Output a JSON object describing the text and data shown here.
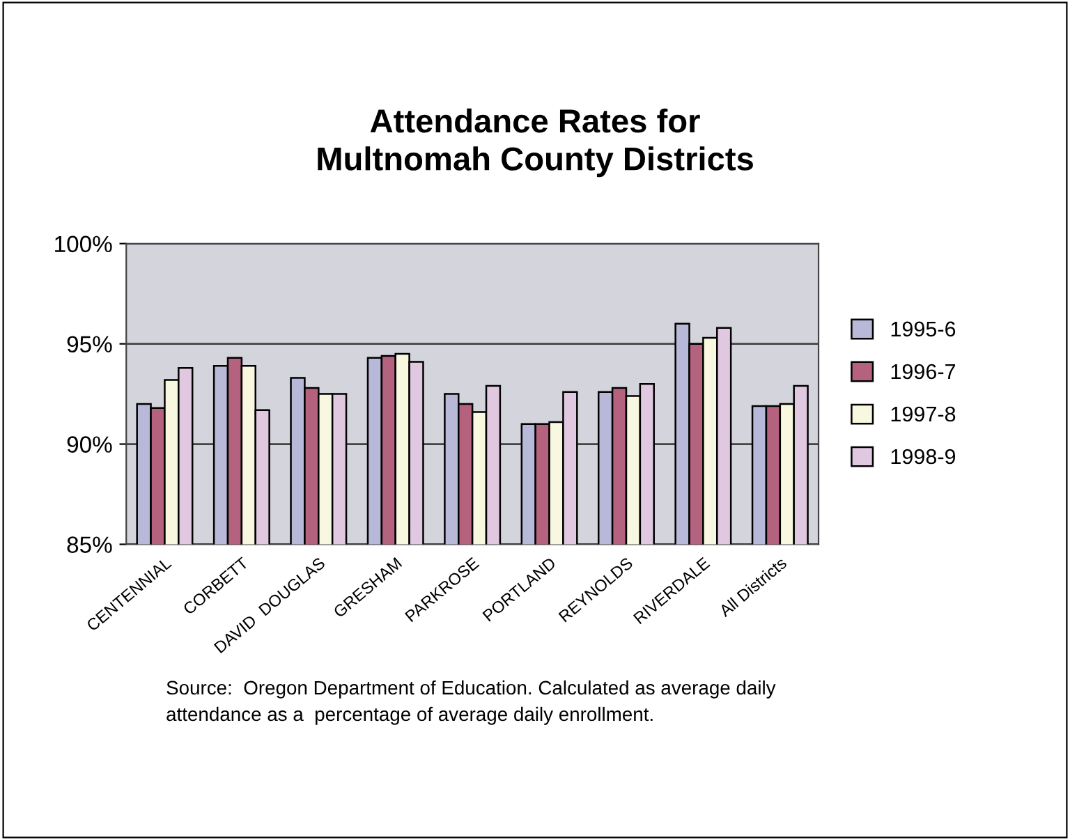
{
  "chart_data": {
    "type": "bar",
    "title": "Attendance Rates for\nMultnomah County Districts",
    "categories": [
      "CENTENNIAL",
      "CORBETT",
      "DAVID  DOUGLAS",
      "GRESHAM",
      "PARKROSE",
      "PORTLAND",
      "REYNOLDS",
      "RIVERDALE",
      "All Districts"
    ],
    "series": [
      {
        "name": "1995-6",
        "color": "#b8b8d8",
        "values": [
          92.0,
          93.9,
          93.3,
          94.3,
          92.5,
          91.0,
          92.6,
          96.0,
          91.9
        ]
      },
      {
        "name": "1996-7",
        "color": "#b4627e",
        "values": [
          91.8,
          94.3,
          92.8,
          94.4,
          92.0,
          91.0,
          92.8,
          95.0,
          91.9
        ]
      },
      {
        "name": "1997-8",
        "color": "#f8f8e0",
        "values": [
          93.2,
          93.9,
          92.5,
          94.5,
          91.6,
          91.1,
          92.4,
          95.3,
          92.0
        ]
      },
      {
        "name": "1998-9",
        "color": "#e0c8e0",
        "values": [
          93.8,
          91.7,
          92.5,
          94.1,
          92.9,
          92.6,
          93.0,
          95.8,
          92.9
        ]
      }
    ],
    "ylim": [
      85,
      100
    ],
    "yticks": [
      {
        "value": 85,
        "label": "85%"
      },
      {
        "value": 90,
        "label": "90%"
      },
      {
        "value": 95,
        "label": "95%"
      },
      {
        "value": 100,
        "label": "100%"
      }
    ],
    "grid": "y",
    "legend": "right",
    "annotations": [
      "Source:  Oregon Department of Education. Calculated as average daily\nattendance as a  percentage of average daily enrollment."
    ]
  }
}
